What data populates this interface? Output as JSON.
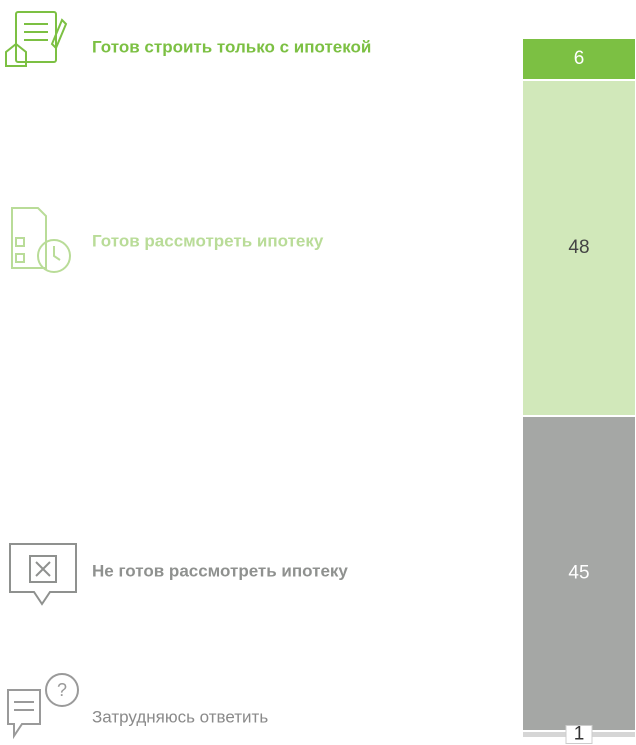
{
  "chart_data": {
    "type": "stacked-bar",
    "series": [
      {
        "name": "Готов строить только с ипотекой",
        "color": "#7cc043",
        "values": [
          6
        ]
      },
      {
        "name": "Готов рассмотреть ипотеку",
        "color": "#d1e8ba",
        "values": [
          48
        ]
      },
      {
        "name": "Не готов рассмотреть ипотеку",
        "color": "#a5a7a5",
        "values": [
          45
        ]
      },
      {
        "name": "Затрудняюсь ответить",
        "color": "#d6d6d6",
        "values": [
          1
        ]
      }
    ]
  }
}
